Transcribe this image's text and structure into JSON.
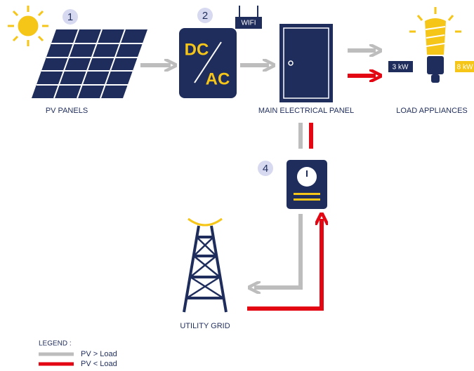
{
  "nodes": [
    {
      "badge": "1",
      "label": "PV PANELS"
    },
    {
      "badge": "2",
      "label": "WIFI",
      "inverter_top": "DC",
      "inverter_bottom": "AC"
    },
    {
      "label": "MAIN ELECTRICAL PANEL"
    },
    {
      "label": "LOAD APPLIANCES",
      "low": "3 kW",
      "high": "8 kW"
    },
    {
      "badge": "4"
    },
    {
      "label": "UTILITY GRID"
    }
  ],
  "legend": {
    "title": "LEGEND :",
    "items": [
      "PV > Load",
      "PV < Load"
    ]
  }
}
